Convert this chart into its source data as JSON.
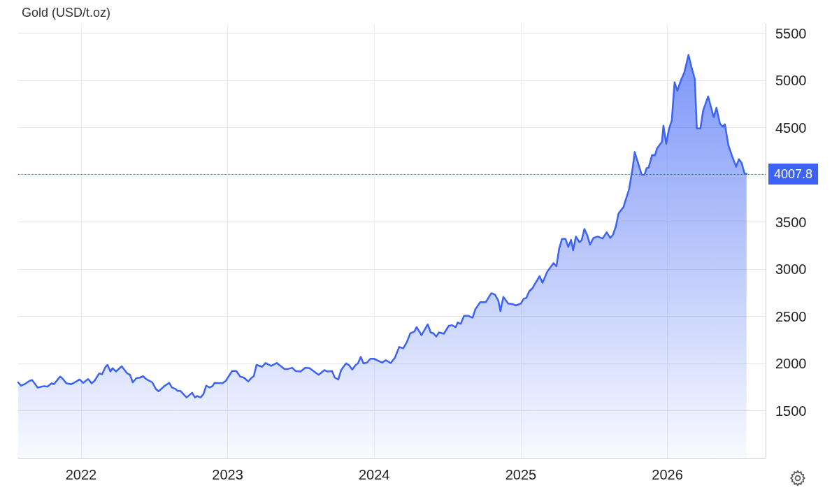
{
  "chart_data": {
    "type": "area",
    "title": "Gold (USD/t.oz)",
    "x": [
      2021.571,
      2021.59,
      2021.614,
      2021.647,
      2021.666,
      2021.704,
      2021.747,
      2021.771,
      2021.8,
      2021.814,
      2021.857,
      2021.871,
      2021.9,
      2021.933,
      2021.957,
      2021.99,
      2022.014,
      2022.048,
      2022.072,
      2022.091,
      2022.124,
      2022.143,
      2022.167,
      2022.181,
      2022.2,
      2022.215,
      2022.238,
      2022.277,
      2022.315,
      2022.334,
      2022.353,
      2022.377,
      2022.401,
      2022.424,
      2022.444,
      2022.486,
      2022.51,
      2022.529,
      2022.568,
      2022.601,
      2022.62,
      2022.644,
      2022.658,
      2022.677,
      2022.72,
      2022.758,
      2022.777,
      2022.792,
      2022.815,
      2022.835,
      2022.854,
      2022.877,
      2022.897,
      2022.911,
      2022.963,
      2022.987,
      2023.03,
      2023.059,
      2023.087,
      2023.111,
      2023.14,
      2023.164,
      2023.178,
      2023.197,
      2023.235,
      2023.259,
      2023.297,
      2023.335,
      2023.388,
      2023.407,
      2023.44,
      2023.464,
      2023.497,
      2023.531,
      2023.559,
      2023.621,
      2023.66,
      2023.679,
      2023.712,
      2023.731,
      2023.755,
      2023.774,
      2023.807,
      2023.827,
      2023.85,
      2023.874,
      2023.889,
      2023.908,
      2023.927,
      2023.951,
      2023.974,
      2023.998,
      2024.032,
      2024.055,
      2024.079,
      2024.113,
      2024.141,
      2024.17,
      2024.198,
      2024.222,
      2024.246,
      2024.275,
      2024.289,
      2024.323,
      2024.365,
      2024.385,
      2024.404,
      2024.423,
      2024.442,
      2024.475,
      2024.509,
      2024.532,
      2024.556,
      2024.57,
      2024.59,
      2024.613,
      2024.642,
      2024.671,
      2024.69,
      2024.723,
      2024.761,
      2024.799,
      2024.823,
      2024.847,
      2024.861,
      2024.881,
      2024.914,
      2024.943,
      2024.966,
      2025.0,
      2025.019,
      2025.038,
      2025.057,
      2025.081,
      2025.095,
      2025.128,
      2025.148,
      2025.181,
      2025.224,
      2025.243,
      2025.262,
      2025.281,
      2025.305,
      2025.324,
      2025.343,
      2025.357,
      2025.376,
      2025.4,
      2025.415,
      2025.434,
      2025.453,
      2025.472,
      2025.496,
      2025.524,
      2025.558,
      2025.586,
      2025.61,
      2025.629,
      2025.648,
      2025.667,
      2025.701,
      2025.739,
      2025.763,
      2025.777,
      2025.801,
      2025.825,
      2025.844,
      2025.858,
      2025.872,
      2025.896,
      2025.915,
      2025.93,
      2025.963,
      2025.973,
      2025.992,
      2026.011,
      2026.03,
      2026.049,
      2026.068,
      2026.092,
      2026.116,
      2026.144,
      2026.163,
      2026.187,
      2026.201,
      2026.225,
      2026.244,
      2026.278,
      2026.316,
      2026.335,
      2026.359,
      2026.378,
      2026.392,
      2026.416,
      2026.44,
      2026.469,
      2026.488,
      2026.507,
      2026.526,
      2026.54
    ],
    "series": [
      {
        "color": "#3d63f5",
        "values": [
          1800,
          1765,
          1780,
          1815,
          1825,
          1745,
          1760,
          1755,
          1790,
          1780,
          1860,
          1845,
          1790,
          1780,
          1800,
          1830,
          1795,
          1835,
          1790,
          1815,
          1895,
          1885,
          1965,
          1985,
          1915,
          1950,
          1915,
          1970,
          1895,
          1880,
          1800,
          1845,
          1850,
          1865,
          1835,
          1800,
          1730,
          1705,
          1760,
          1795,
          1745,
          1730,
          1710,
          1710,
          1640,
          1690,
          1640,
          1655,
          1640,
          1675,
          1765,
          1745,
          1760,
          1795,
          1790,
          1815,
          1920,
          1920,
          1860,
          1850,
          1810,
          1850,
          1865,
          1985,
          1965,
          2005,
          1975,
          2005,
          1940,
          1940,
          1955,
          1920,
          1915,
          1955,
          1950,
          1880,
          1930,
          1915,
          1920,
          1850,
          1830,
          1930,
          2000,
          1985,
          1935,
          1985,
          2000,
          2070,
          2000,
          2010,
          2050,
          2050,
          2025,
          2010,
          2035,
          2005,
          2060,
          2175,
          2160,
          2225,
          2320,
          2340,
          2385,
          2300,
          2415,
          2330,
          2320,
          2285,
          2330,
          2315,
          2400,
          2405,
          2385,
          2435,
          2420,
          2505,
          2505,
          2485,
          2575,
          2650,
          2650,
          2745,
          2730,
          2665,
          2555,
          2705,
          2635,
          2630,
          2615,
          2635,
          2685,
          2695,
          2765,
          2800,
          2840,
          2925,
          2855,
          2975,
          3065,
          3030,
          3220,
          3320,
          3320,
          3235,
          3310,
          3200,
          3345,
          3285,
          3305,
          3425,
          3360,
          3260,
          3330,
          3345,
          3325,
          3390,
          3330,
          3365,
          3450,
          3590,
          3660,
          3850,
          4070,
          4240,
          4120,
          4000,
          4000,
          4070,
          4075,
          4210,
          4205,
          4280,
          4350,
          4520,
          4330,
          4485,
          4575,
          4980,
          4890,
          5000,
          5085,
          5270,
          5150,
          5015,
          4490,
          4490,
          4680,
          4830,
          4610,
          4710,
          4540,
          4510,
          4535,
          4315,
          4205,
          4085,
          4165,
          4125,
          4015,
          4008
        ]
      }
    ],
    "xlim": [
      2021.571,
      2026.67
    ],
    "xticks": [
      2022,
      2023,
      2024,
      2025,
      2026
    ],
    "ylim": [
      1000,
      5600
    ],
    "yticks": [
      1500,
      2000,
      2500,
      3000,
      3500,
      4500,
      5000,
      5500
    ],
    "ref_lines": [
      {
        "axis": "y",
        "value": 4007.8,
        "label": "4007.8",
        "color": "#3d63f5",
        "line_style": "dotted"
      }
    ],
    "grid": true,
    "marker": "none",
    "line_style": "solid"
  }
}
